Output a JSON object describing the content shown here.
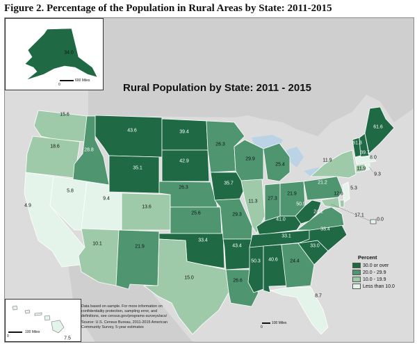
{
  "figure_title": "Figure 2. Percentage of the Population in Rural Areas by State: 2011-2015",
  "map_title": "Rural Population by State: 2011 - 2015",
  "legend": {
    "title": "Percent",
    "items": [
      {
        "label": "30.0 or over",
        "color": "#1f6a45"
      },
      {
        "label": "20.0 - 29.9",
        "color": "#4f9670"
      },
      {
        "label": "10.0 - 19.9",
        "color": "#9fcaa9"
      },
      {
        "label": "Less than 10.0",
        "color": "#e4f4ea"
      }
    ]
  },
  "states": [
    {
      "name": "Alaska",
      "value": "34.0"
    },
    {
      "name": "Hawaii",
      "value": "7.5"
    },
    {
      "name": "Washington",
      "value": "15.6"
    },
    {
      "name": "Oregon",
      "value": "18.6"
    },
    {
      "name": "California",
      "value": "4.9"
    },
    {
      "name": "Nevada",
      "value": "5.8"
    },
    {
      "name": "Idaho",
      "value": "28.8"
    },
    {
      "name": "Montana",
      "value": "43.6"
    },
    {
      "name": "Wyoming",
      "value": "35.1"
    },
    {
      "name": "Utah",
      "value": "9.4"
    },
    {
      "name": "Colorado",
      "value": "13.6"
    },
    {
      "name": "Arizona",
      "value": "10.1"
    },
    {
      "name": "New Mexico",
      "value": "21.9"
    },
    {
      "name": "North Dakota",
      "value": "39.4"
    },
    {
      "name": "South Dakota",
      "value": "42.9"
    },
    {
      "name": "Nebraska",
      "value": "26.3"
    },
    {
      "name": "Kansas",
      "value": "25.6"
    },
    {
      "name": "Oklahoma",
      "value": "33.4"
    },
    {
      "name": "Texas",
      "value": "15.0"
    },
    {
      "name": "Minnesota",
      "value": "26.3"
    },
    {
      "name": "Iowa",
      "value": "35.7"
    },
    {
      "name": "Missouri",
      "value": "29.3"
    },
    {
      "name": "Arkansas",
      "value": "43.4"
    },
    {
      "name": "Louisiana",
      "value": "26.6"
    },
    {
      "name": "Wisconsin",
      "value": "29.9"
    },
    {
      "name": "Illinois",
      "value": "11.3"
    },
    {
      "name": "Michigan",
      "value": "25.4"
    },
    {
      "name": "Indiana",
      "value": "27.3"
    },
    {
      "name": "Ohio",
      "value": "21.9"
    },
    {
      "name": "Kentucky",
      "value": "41.0"
    },
    {
      "name": "Tennessee",
      "value": "33.1"
    },
    {
      "name": "Mississippi",
      "value": "50.3"
    },
    {
      "name": "Alabama",
      "value": "40.6"
    },
    {
      "name": "Georgia",
      "value": "24.4"
    },
    {
      "name": "Florida",
      "value": "8.7"
    },
    {
      "name": "South Carolina",
      "value": "33.0"
    },
    {
      "name": "North Carolina",
      "value": "33.4"
    },
    {
      "name": "Virginia",
      "value": "24.1"
    },
    {
      "name": "West Virginia",
      "value": "50.9"
    },
    {
      "name": "Pennsylvania",
      "value": "21.2"
    },
    {
      "name": "New York",
      "value": "11.9"
    },
    {
      "name": "Vermont",
      "value": "61.3"
    },
    {
      "name": "New Hampshire",
      "value": "39.7"
    },
    {
      "name": "Maine",
      "value": "61.6"
    },
    {
      "name": "Massachusetts",
      "value": "8.0"
    },
    {
      "name": "Rhode Island",
      "value": "9.3"
    },
    {
      "name": "Connecticut",
      "value": "11.9"
    },
    {
      "name": "New Jersey",
      "value": "5.3"
    },
    {
      "name": "Delaware",
      "value": "17.1"
    },
    {
      "name": "Maryland",
      "value": "12.6"
    },
    {
      "name": "District of Columbia",
      "value": "0.0"
    }
  ],
  "note": {
    "text": "Data based on sample. For more information on confidentiality protection, sampling error, and definitions, see census.gov/programs-surveys/acs/",
    "source": "Source: U.S. Census Bureau, 2011-2015 American Community Survey, 5-year estimates"
  },
  "scales": {
    "alaska": [
      "0",
      "600 Miles"
    ],
    "hawaii": [
      "0",
      "100 Miles"
    ],
    "main": [
      "0",
      "100 Miles"
    ]
  }
}
